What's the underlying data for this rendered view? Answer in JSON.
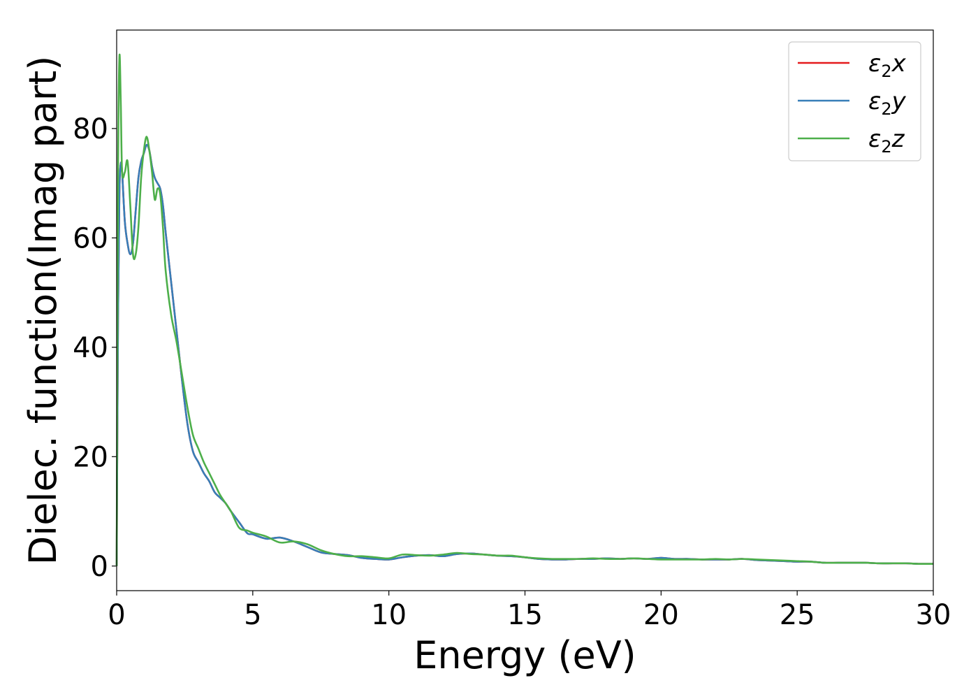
{
  "chart_data": {
    "type": "line",
    "xlabel": "Energy (eV)",
    "ylabel": "Dielec. function(Imag part)",
    "xlim": [
      0,
      30
    ],
    "ylim": [
      -4.5,
      98
    ],
    "xticks": [
      0,
      5,
      10,
      15,
      20,
      25,
      30
    ],
    "yticks": [
      0,
      20,
      40,
      60,
      80
    ],
    "grid": false,
    "legend_position": "top-right",
    "series": [
      {
        "name": "ε₂x",
        "legend": {
          "base": "ε",
          "sub": "2",
          "var": "x"
        },
        "color": "#e41a1c",
        "x": [
          0,
          0.05,
          0.1,
          0.15,
          0.2,
          0.3,
          0.4,
          0.5,
          0.6,
          0.7,
          0.8,
          0.9,
          1.0,
          1.1,
          1.2,
          1.3,
          1.4,
          1.5,
          1.6,
          1.7,
          1.8,
          2.0,
          2.2,
          2.4,
          2.6,
          2.8,
          3.0,
          3.2,
          3.4,
          3.6,
          3.8,
          4.0,
          4.2,
          4.5,
          4.8,
          5.0,
          5.5,
          6.0,
          6.5,
          7.0,
          7.5,
          8.0,
          8.5,
          9.0,
          9.5,
          10.0,
          10.5,
          11.0,
          11.5,
          12.0,
          12.5,
          13.0,
          13.5,
          14.0,
          14.5,
          15.0,
          15.5,
          16.0,
          16.5,
          17.0,
          17.5,
          18.0,
          18.5,
          19.0,
          19.5,
          20.0,
          20.5,
          21.0,
          21.5,
          22.0,
          22.5,
          23.0,
          23.5,
          24.0,
          24.5,
          25.0,
          25.5,
          26.0,
          26.5,
          27.0,
          27.5,
          28.0,
          28.5,
          29.0,
          29.5,
          30.0
        ],
        "y": [
          0,
          45,
          68,
          73.5,
          72,
          63,
          59,
          57,
          59,
          65,
          71,
          74,
          75.5,
          77,
          76,
          73,
          71,
          70,
          69,
          66,
          61,
          52,
          43,
          34,
          26,
          21,
          19,
          17,
          15.5,
          13.5,
          12.5,
          11.5,
          10,
          8,
          6,
          5.8,
          5,
          5.2,
          4.5,
          3.5,
          2.5,
          2.2,
          2.0,
          1.5,
          1.3,
          1.2,
          1.6,
          1.9,
          2.0,
          1.8,
          2.2,
          2.3,
          2.1,
          1.9,
          1.8,
          1.6,
          1.3,
          1.2,
          1.2,
          1.3,
          1.3,
          1.4,
          1.3,
          1.4,
          1.3,
          1.5,
          1.3,
          1.3,
          1.2,
          1.2,
          1.2,
          1.3,
          1.1,
          1.0,
          0.9,
          0.8,
          0.8,
          0.6,
          0.6,
          0.6,
          0.6,
          0.5,
          0.5,
          0.5,
          0.4,
          0.4
        ]
      },
      {
        "name": "ε₂y",
        "legend": {
          "base": "ε",
          "sub": "2",
          "var": "y"
        },
        "color": "#377eb8",
        "x": [
          0,
          0.05,
          0.1,
          0.15,
          0.2,
          0.3,
          0.4,
          0.5,
          0.6,
          0.7,
          0.8,
          0.9,
          1.0,
          1.1,
          1.2,
          1.3,
          1.4,
          1.5,
          1.6,
          1.7,
          1.8,
          2.0,
          2.2,
          2.4,
          2.6,
          2.8,
          3.0,
          3.2,
          3.4,
          3.6,
          3.8,
          4.0,
          4.2,
          4.5,
          4.8,
          5.0,
          5.5,
          6.0,
          6.5,
          7.0,
          7.5,
          8.0,
          8.5,
          9.0,
          9.5,
          10.0,
          10.5,
          11.0,
          11.5,
          12.0,
          12.5,
          13.0,
          13.5,
          14.0,
          14.5,
          15.0,
          15.5,
          16.0,
          16.5,
          17.0,
          17.5,
          18.0,
          18.5,
          19.0,
          19.5,
          20.0,
          20.5,
          21.0,
          21.5,
          22.0,
          22.5,
          23.0,
          23.5,
          24.0,
          24.5,
          25.0,
          25.5,
          26.0,
          26.5,
          27.0,
          27.5,
          28.0,
          28.5,
          29.0,
          29.5,
          30.0
        ],
        "y": [
          0,
          45,
          68,
          73.5,
          72,
          63,
          59,
          57,
          59,
          65,
          71,
          74,
          75.5,
          77,
          76,
          73,
          71,
          70,
          69,
          66,
          61,
          52,
          43,
          34,
          26,
          21,
          19,
          17,
          15.5,
          13.5,
          12.5,
          11.5,
          10,
          8,
          6,
          5.8,
          5,
          5.2,
          4.5,
          3.5,
          2.5,
          2.2,
          2.0,
          1.5,
          1.3,
          1.2,
          1.6,
          1.9,
          2.0,
          1.8,
          2.2,
          2.3,
          2.1,
          1.9,
          1.8,
          1.6,
          1.3,
          1.2,
          1.2,
          1.3,
          1.3,
          1.4,
          1.3,
          1.4,
          1.3,
          1.5,
          1.3,
          1.3,
          1.2,
          1.2,
          1.2,
          1.3,
          1.1,
          1.0,
          0.9,
          0.8,
          0.8,
          0.6,
          0.6,
          0.6,
          0.6,
          0.5,
          0.5,
          0.5,
          0.4,
          0.4
        ]
      },
      {
        "name": "ε₂z",
        "legend": {
          "base": "ε",
          "sub": "2",
          "var": "z"
        },
        "color": "#4daf4a",
        "x": [
          0,
          0.05,
          0.1,
          0.15,
          0.2,
          0.3,
          0.4,
          0.5,
          0.6,
          0.7,
          0.8,
          0.9,
          1.0,
          1.1,
          1.2,
          1.3,
          1.4,
          1.5,
          1.6,
          1.7,
          1.8,
          2.0,
          2.2,
          2.4,
          2.6,
          2.8,
          3.0,
          3.2,
          3.4,
          3.6,
          3.8,
          4.0,
          4.2,
          4.5,
          4.8,
          5.0,
          5.5,
          6.0,
          6.5,
          7.0,
          7.5,
          8.0,
          8.5,
          9.0,
          9.5,
          10.0,
          10.5,
          11.0,
          11.5,
          12.0,
          12.5,
          13.0,
          13.5,
          14.0,
          14.5,
          15.0,
          15.5,
          16.0,
          16.5,
          17.0,
          17.5,
          18.0,
          18.5,
          19.0,
          19.5,
          20.0,
          20.5,
          21.0,
          21.5,
          22.0,
          22.5,
          23.0,
          23.5,
          24.0,
          24.5,
          25.0,
          25.5,
          26.0,
          26.5,
          27.0,
          27.5,
          28.0,
          28.5,
          29.0,
          29.5,
          30.0
        ],
        "y": [
          0,
          70,
          93,
          85,
          72,
          72,
          74,
          66,
          57,
          57,
          62,
          71,
          76,
          78.5,
          76,
          72,
          67,
          69,
          68,
          62,
          54,
          46,
          41,
          35,
          29,
          24,
          21.5,
          19,
          17,
          15,
          13,
          11.5,
          10,
          7,
          6.5,
          6.1,
          5.4,
          4.3,
          4.5,
          4.0,
          2.9,
          2.2,
          1.8,
          1.8,
          1.6,
          1.4,
          2.1,
          2.0,
          1.9,
          2.1,
          2.4,
          2.2,
          2.1,
          1.9,
          1.9,
          1.6,
          1.4,
          1.3,
          1.3,
          1.3,
          1.4,
          1.3,
          1.3,
          1.4,
          1.3,
          1.2,
          1.2,
          1.2,
          1.2,
          1.3,
          1.2,
          1.3,
          1.2,
          1.1,
          1.0,
          0.9,
          0.8,
          0.6,
          0.6,
          0.6,
          0.6,
          0.5,
          0.5,
          0.5,
          0.4,
          0.4
        ]
      }
    ]
  }
}
